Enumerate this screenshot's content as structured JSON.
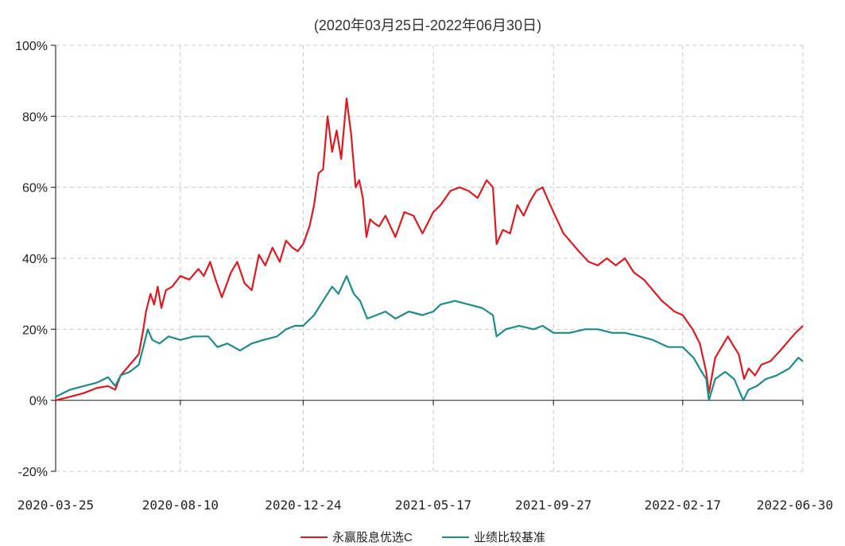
{
  "chart_data": {
    "type": "line",
    "title": "",
    "subtitle": "(2020年03月25日-2022年06月30日)",
    "xlabel": "",
    "ylabel": "",
    "ylim": [
      -20,
      100
    ],
    "y_ticks": [
      "-20%",
      "0%",
      "20%",
      "40%",
      "60%",
      "80%",
      "100%"
    ],
    "y_tick_values": [
      -20,
      0,
      20,
      40,
      60,
      80,
      100
    ],
    "x_ticks": [
      "2020-03-25",
      "2020-08-10",
      "2020-12-24",
      "2021-05-17",
      "2021-09-27",
      "2022-02-17",
      "2022-06-30"
    ],
    "x_range": [
      "2020-03-25",
      "2022-06-30"
    ],
    "grid": true,
    "legend_position": "bottom-center",
    "series": [
      {
        "name": "永赢股息优选C",
        "color": "#e0191f",
        "points": [
          [
            "2020-03-25",
            0
          ],
          [
            "2020-04-10",
            1
          ],
          [
            "2020-04-25",
            2
          ],
          [
            "2020-05-10",
            3.5
          ],
          [
            "2020-05-22",
            4
          ],
          [
            "2020-05-30",
            3
          ],
          [
            "2020-06-05",
            7
          ],
          [
            "2020-06-15",
            10
          ],
          [
            "2020-06-25",
            13
          ],
          [
            "2020-06-30",
            20
          ],
          [
            "2020-07-03",
            25
          ],
          [
            "2020-07-08",
            30
          ],
          [
            "2020-07-12",
            27
          ],
          [
            "2020-07-16",
            32
          ],
          [
            "2020-07-20",
            26
          ],
          [
            "2020-07-25",
            31
          ],
          [
            "2020-08-01",
            32
          ],
          [
            "2020-08-10",
            35
          ],
          [
            "2020-08-20",
            34
          ],
          [
            "2020-08-30",
            37
          ],
          [
            "2020-09-05",
            35
          ],
          [
            "2020-09-12",
            39
          ],
          [
            "2020-09-18",
            34
          ],
          [
            "2020-09-25",
            29
          ],
          [
            "2020-10-05",
            36
          ],
          [
            "2020-10-12",
            39
          ],
          [
            "2020-10-20",
            33
          ],
          [
            "2020-10-28",
            31
          ],
          [
            "2020-11-05",
            41
          ],
          [
            "2020-11-12",
            38
          ],
          [
            "2020-11-20",
            43
          ],
          [
            "2020-11-28",
            39
          ],
          [
            "2020-12-05",
            45
          ],
          [
            "2020-12-12",
            43
          ],
          [
            "2020-12-18",
            42
          ],
          [
            "2020-12-24",
            44
          ],
          [
            "2020-12-31",
            49
          ],
          [
            "2021-01-05",
            55
          ],
          [
            "2021-01-10",
            64
          ],
          [
            "2021-01-15",
            65
          ],
          [
            "2021-01-20",
            80
          ],
          [
            "2021-01-25",
            70
          ],
          [
            "2021-01-30",
            76
          ],
          [
            "2021-02-04",
            68
          ],
          [
            "2021-02-10",
            85
          ],
          [
            "2021-02-15",
            75
          ],
          [
            "2021-02-20",
            60
          ],
          [
            "2021-02-24",
            62
          ],
          [
            "2021-02-28",
            57
          ],
          [
            "2021-03-04",
            46
          ],
          [
            "2021-03-08",
            51
          ],
          [
            "2021-03-12",
            50
          ],
          [
            "2021-03-18",
            49
          ],
          [
            "2021-03-25",
            52
          ],
          [
            "2021-04-05",
            46
          ],
          [
            "2021-04-15",
            53
          ],
          [
            "2021-04-25",
            52
          ],
          [
            "2021-05-05",
            47
          ],
          [
            "2021-05-17",
            53
          ],
          [
            "2021-05-25",
            55
          ],
          [
            "2021-06-05",
            59
          ],
          [
            "2021-06-15",
            60
          ],
          [
            "2021-06-25",
            59
          ],
          [
            "2021-07-05",
            57
          ],
          [
            "2021-07-15",
            62
          ],
          [
            "2021-07-22",
            60
          ],
          [
            "2021-07-26",
            44
          ],
          [
            "2021-08-02",
            48
          ],
          [
            "2021-08-10",
            47
          ],
          [
            "2021-08-18",
            55
          ],
          [
            "2021-08-25",
            52
          ],
          [
            "2021-09-01",
            56
          ],
          [
            "2021-09-08",
            59
          ],
          [
            "2021-09-15",
            60
          ],
          [
            "2021-09-20",
            57
          ],
          [
            "2021-09-27",
            53
          ],
          [
            "2021-10-08",
            47
          ],
          [
            "2021-10-15",
            45
          ],
          [
            "2021-10-25",
            42
          ],
          [
            "2021-11-05",
            39
          ],
          [
            "2021-11-15",
            38
          ],
          [
            "2021-11-25",
            40
          ],
          [
            "2021-12-05",
            38
          ],
          [
            "2021-12-15",
            40
          ],
          [
            "2021-12-25",
            36
          ],
          [
            "2022-01-05",
            34
          ],
          [
            "2022-01-15",
            31
          ],
          [
            "2022-01-25",
            28
          ],
          [
            "2022-02-08",
            25
          ],
          [
            "2022-02-17",
            24
          ],
          [
            "2022-02-28",
            20
          ],
          [
            "2022-03-08",
            16
          ],
          [
            "2022-03-15",
            8
          ],
          [
            "2022-03-18",
            2
          ],
          [
            "2022-03-25",
            12
          ],
          [
            "2022-04-01",
            15
          ],
          [
            "2022-04-08",
            18
          ],
          [
            "2022-04-15",
            15
          ],
          [
            "2022-04-20",
            13
          ],
          [
            "2022-04-26",
            6
          ],
          [
            "2022-05-01",
            9
          ],
          [
            "2022-05-08",
            7
          ],
          [
            "2022-05-15",
            10
          ],
          [
            "2022-05-25",
            11
          ],
          [
            "2022-06-05",
            14
          ],
          [
            "2022-06-15",
            17
          ],
          [
            "2022-06-22",
            19
          ],
          [
            "2022-06-30",
            21
          ]
        ]
      },
      {
        "name": "业绩比较基准",
        "color": "#1a8c8c",
        "points": [
          [
            "2020-03-25",
            1
          ],
          [
            "2020-04-10",
            3
          ],
          [
            "2020-04-25",
            4
          ],
          [
            "2020-05-10",
            5
          ],
          [
            "2020-05-22",
            6.5
          ],
          [
            "2020-05-30",
            4
          ],
          [
            "2020-06-05",
            7
          ],
          [
            "2020-06-15",
            8
          ],
          [
            "2020-06-25",
            10
          ],
          [
            "2020-06-30",
            15
          ],
          [
            "2020-07-05",
            20
          ],
          [
            "2020-07-10",
            17
          ],
          [
            "2020-07-18",
            16
          ],
          [
            "2020-07-28",
            18
          ],
          [
            "2020-08-10",
            17
          ],
          [
            "2020-08-25",
            18
          ],
          [
            "2020-09-10",
            18
          ],
          [
            "2020-09-20",
            15
          ],
          [
            "2020-10-01",
            16
          ],
          [
            "2020-10-15",
            14
          ],
          [
            "2020-10-28",
            16
          ],
          [
            "2020-11-10",
            17
          ],
          [
            "2020-11-25",
            18
          ],
          [
            "2020-12-05",
            20
          ],
          [
            "2020-12-15",
            21
          ],
          [
            "2020-12-24",
            21
          ],
          [
            "2021-01-05",
            24
          ],
          [
            "2021-01-15",
            28
          ],
          [
            "2021-01-25",
            32
          ],
          [
            "2021-02-01",
            30
          ],
          [
            "2021-02-10",
            35
          ],
          [
            "2021-02-18",
            30
          ],
          [
            "2021-02-25",
            28
          ],
          [
            "2021-03-05",
            23
          ],
          [
            "2021-03-15",
            24
          ],
          [
            "2021-03-25",
            25
          ],
          [
            "2021-04-05",
            23
          ],
          [
            "2021-04-20",
            25
          ],
          [
            "2021-05-05",
            24
          ],
          [
            "2021-05-17",
            25
          ],
          [
            "2021-05-25",
            27
          ],
          [
            "2021-06-10",
            28
          ],
          [
            "2021-06-25",
            27
          ],
          [
            "2021-07-10",
            26
          ],
          [
            "2021-07-22",
            24
          ],
          [
            "2021-07-26",
            18
          ],
          [
            "2021-08-05",
            20
          ],
          [
            "2021-08-20",
            21
          ],
          [
            "2021-09-05",
            20
          ],
          [
            "2021-09-15",
            21
          ],
          [
            "2021-09-27",
            19
          ],
          [
            "2021-10-15",
            19
          ],
          [
            "2021-11-01",
            20
          ],
          [
            "2021-11-15",
            20
          ],
          [
            "2021-12-01",
            19
          ],
          [
            "2021-12-15",
            19
          ],
          [
            "2022-01-01",
            18
          ],
          [
            "2022-01-15",
            17
          ],
          [
            "2022-02-01",
            15
          ],
          [
            "2022-02-17",
            15
          ],
          [
            "2022-03-01",
            12
          ],
          [
            "2022-03-10",
            8
          ],
          [
            "2022-03-15",
            6
          ],
          [
            "2022-03-18",
            0
          ],
          [
            "2022-03-25",
            6
          ],
          [
            "2022-04-05",
            8
          ],
          [
            "2022-04-15",
            6
          ],
          [
            "2022-04-25",
            0
          ],
          [
            "2022-05-01",
            3
          ],
          [
            "2022-05-10",
            4
          ],
          [
            "2022-05-20",
            6
          ],
          [
            "2022-06-01",
            7
          ],
          [
            "2022-06-15",
            9
          ],
          [
            "2022-06-25",
            12
          ],
          [
            "2022-06-30",
            11
          ]
        ]
      }
    ]
  }
}
